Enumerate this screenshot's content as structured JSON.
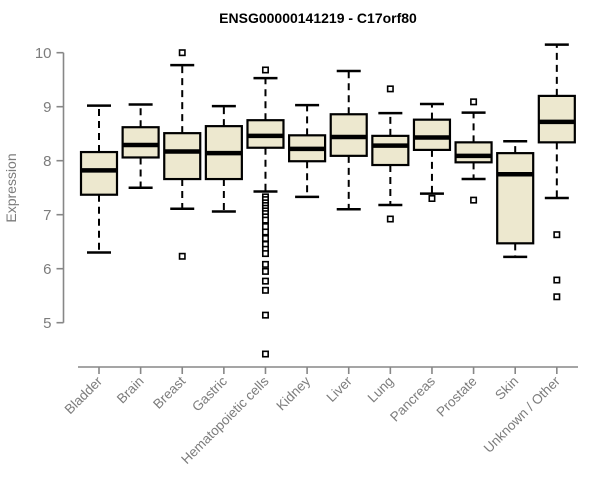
{
  "title": "ENSG00000141219 - C17orf80",
  "colors": {
    "box_fill": "#EDE8CF",
    "box_border": "#000000",
    "median": "#000000",
    "whisker": "#000000",
    "axis": "#878787",
    "tick_label": "#7c7c7c",
    "title": "#000000",
    "background": "#ffffff"
  },
  "chart_data": {
    "type": "boxplot",
    "title": "ENSG00000141219 - C17orf80",
    "xlabel": "",
    "ylabel": "Expression",
    "ylim": [
      5,
      10
    ],
    "yticks": [
      10,
      9,
      8,
      7,
      6,
      5
    ],
    "grid": false,
    "legend": false,
    "categories": [
      "Bladder",
      "Brain",
      "Breast",
      "Gastric",
      "Hematopoietic cells",
      "Kidney",
      "Liver",
      "Lung",
      "Pancreas",
      "Prostate",
      "Skin",
      "Unknown / Other"
    ],
    "boxes": [
      {
        "name": "Bladder",
        "whisker_low": 6.3,
        "q1": 7.37,
        "median": 7.82,
        "q3": 8.16,
        "whisker_high": 9.02,
        "outliers": []
      },
      {
        "name": "Brain",
        "whisker_low": 7.5,
        "q1": 8.06,
        "median": 8.29,
        "q3": 8.62,
        "whisker_high": 9.04,
        "outliers": []
      },
      {
        "name": "Breast",
        "whisker_low": 7.11,
        "q1": 7.66,
        "median": 8.17,
        "q3": 8.51,
        "whisker_high": 9.77,
        "outliers": [
          10.0,
          6.23
        ]
      },
      {
        "name": "Gastric",
        "whisker_low": 7.06,
        "q1": 7.66,
        "median": 8.14,
        "q3": 8.64,
        "whisker_high": 9.01,
        "outliers": []
      },
      {
        "name": "Hematopoietic cells",
        "whisker_low": 7.43,
        "q1": 8.24,
        "median": 8.46,
        "q3": 8.75,
        "whisker_high": 9.53,
        "outliers": [
          9.68,
          7.33,
          7.28,
          7.22,
          7.17,
          7.12,
          7.07,
          7.02,
          6.96,
          6.9,
          6.78,
          6.68,
          6.56,
          6.45,
          6.36,
          6.28,
          6.08,
          5.95,
          5.77,
          5.6,
          5.14,
          4.42
        ]
      },
      {
        "name": "Kidney",
        "whisker_low": 7.33,
        "q1": 7.99,
        "median": 8.22,
        "q3": 8.47,
        "whisker_high": 9.03,
        "outliers": []
      },
      {
        "name": "Liver",
        "whisker_low": 7.1,
        "q1": 8.09,
        "median": 8.44,
        "q3": 8.86,
        "whisker_high": 9.66,
        "outliers": []
      },
      {
        "name": "Lung",
        "whisker_low": 7.18,
        "q1": 7.92,
        "median": 8.28,
        "q3": 8.46,
        "whisker_high": 8.88,
        "outliers": [
          9.33,
          6.92
        ]
      },
      {
        "name": "Pancreas",
        "whisker_low": 7.39,
        "q1": 8.2,
        "median": 8.43,
        "q3": 8.76,
        "whisker_high": 9.05,
        "outliers": [
          7.3
        ]
      },
      {
        "name": "Prostate",
        "whisker_low": 7.66,
        "q1": 7.97,
        "median": 8.09,
        "q3": 8.34,
        "whisker_high": 8.89,
        "outliers": [
          9.09,
          7.27
        ]
      },
      {
        "name": "Skin",
        "whisker_low": 6.22,
        "q1": 6.47,
        "median": 7.75,
        "q3": 8.14,
        "whisker_high": 8.36,
        "outliers": []
      },
      {
        "name": "Unknown / Other",
        "whisker_low": 7.31,
        "q1": 8.34,
        "median": 8.72,
        "q3": 9.2,
        "whisker_high": 10.15,
        "outliers": [
          6.63,
          5.79,
          5.48
        ]
      }
    ]
  }
}
